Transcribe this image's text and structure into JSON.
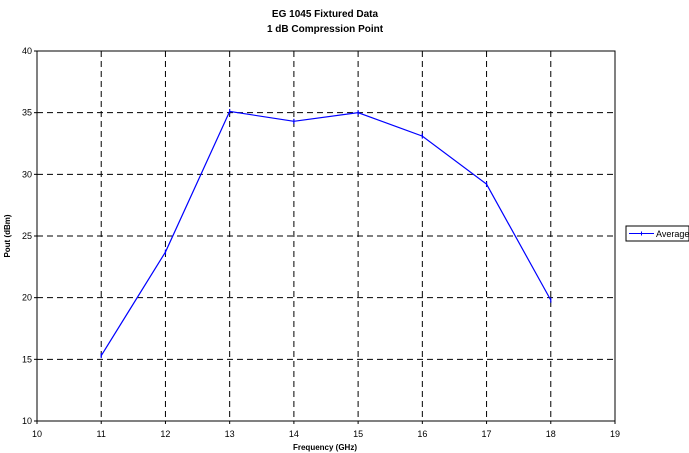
{
  "chart_data": {
    "type": "line",
    "title": "EG 1045 Fixtured Data",
    "subtitle": "1 dB Compression Point",
    "xlabel": "Frequency (GHz)",
    "ylabel": "Pout (dBm)",
    "xlim": [
      10,
      19
    ],
    "ylim": [
      10,
      40
    ],
    "xticks": [
      "10",
      "11",
      "12",
      "13",
      "14",
      "15",
      "16",
      "17",
      "18",
      "19"
    ],
    "yticks": [
      "10",
      "15",
      "20",
      "25",
      "30",
      "35",
      "40"
    ],
    "grid": true,
    "grid_style": "dashed",
    "legend_position": "right",
    "series": [
      {
        "name": "Average",
        "color": "#0000ff",
        "x": [
          11,
          12,
          13,
          14,
          15,
          16,
          17,
          18
        ],
        "y": [
          15.3,
          23.7,
          35.1,
          34.3,
          35.0,
          33.1,
          29.2,
          19.8
        ]
      }
    ]
  }
}
